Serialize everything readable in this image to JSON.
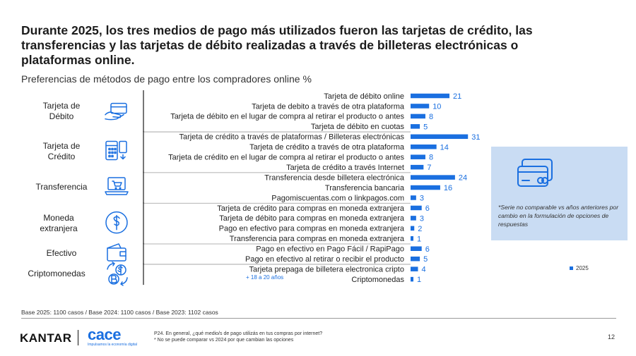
{
  "title": "Durante 2025, los tres medios de pago más utilizados fueron las tarjetas de crédito, las transferencias y las tarjetas de débito realizadas a través de billeteras electrónicas o plataformas online.",
  "subtitle": "Preferencias de métodos de pago entre los compradores online %",
  "chart_data": {
    "type": "bar",
    "orientation": "horizontal",
    "series": [
      {
        "name": "2025",
        "color": "#1a6fe0"
      }
    ],
    "groups": [
      {
        "label": "Tarjeta de Débito",
        "icon": "credit-card-hand-icon",
        "items": [
          {
            "label": "Tarjeta de débito online",
            "value": 21
          },
          {
            "label": "Tarjeta de debito a través de otra plataforma",
            "value": 10
          },
          {
            "label": "Tarjeta de débito en el lugar de compra al retirar el producto o antes",
            "value": 8
          },
          {
            "label": "Tarjeta de débito en cuotas",
            "value": 5
          }
        ]
      },
      {
        "label": "Tarjeta de Crédito",
        "icon": "calculator-card-icon",
        "items": [
          {
            "label": "Tarjeta de crédito a través de plataformas / Billeteras electrónicas",
            "value": 31
          },
          {
            "label": "Tarjeta de crédito a través de otra plataforma",
            "value": 14
          },
          {
            "label": "Tarjeta de crédito en el lugar de compra al retirar el producto o antes",
            "value": 8
          },
          {
            "label": "Tarjeta de crédito a través Internet",
            "value": 7
          }
        ]
      },
      {
        "label": "Transferencia",
        "icon": "laptop-cart-icon",
        "items": [
          {
            "label": "Transferencia desde billetera electrónica",
            "value": 24
          },
          {
            "label": "Transferencia bancaria",
            "value": 16
          },
          {
            "label": "Pagomiscuentas.com o linkpagos.com",
            "value": 3
          }
        ]
      },
      {
        "label": "Moneda extranjera",
        "icon": "dollar-coin-icon",
        "items": [
          {
            "label": "Tarjeta de crédito para compras en moneda extranjera",
            "value": 6
          },
          {
            "label": "Tarjeta de débito para compras en moneda extranjera",
            "value": 3
          },
          {
            "label": "Pago en efectivo para compras en moneda extranjera",
            "value": 2
          },
          {
            "label": "Transferencia para compras en moneda extranjera",
            "value": 1
          }
        ]
      },
      {
        "label": "Efectivo",
        "icon": "wallet-icon",
        "items": [
          {
            "label": "Pago en efectivo en Pago Fácil / RapiPago",
            "value": 6
          },
          {
            "label": "Pago en efectivo al retirar o recibir el producto",
            "value": 5
          }
        ]
      },
      {
        "label": "Criptomonedas",
        "icon": "crypto-exchange-icon",
        "items": [
          {
            "label": "Tarjeta prepaga de billetera electronica cripto",
            "value": 4
          },
          {
            "label": "Criptomonedas",
            "value": 1
          }
        ]
      }
    ],
    "annotation": "+ 18 a 20 años",
    "legend": [
      "2025"
    ]
  },
  "note": "*Serie no comparable vs años anteriores por cambio en la formulación de opciones de respuestas",
  "base": "Base 2025: 1100 casos  / Base 2024: 1100 casos  / Base 2023: 1102 casos",
  "footer": {
    "brand1": "KANTAR",
    "brand2": "cace",
    "brand2_tagline": "Impulsamos la economía digital",
    "line1": "P24. En general, ¿qué medio/s de pago utilizás en tus compras por internet?",
    "line2": "* No se puede comparar vs 2024 por que cambian las opciones",
    "page": "12"
  }
}
